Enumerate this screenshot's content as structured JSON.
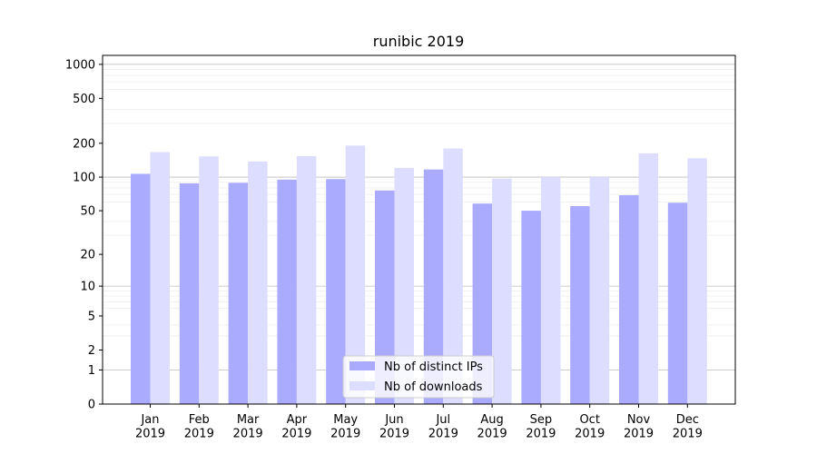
{
  "chart_data": {
    "type": "bar",
    "title": "runibic 2019",
    "xlabel": "",
    "ylabel": "",
    "yscale": "log1p",
    "ylim": [
      0,
      1200
    ],
    "yticks": [
      0,
      1,
      2,
      5,
      10,
      20,
      50,
      100,
      200,
      500,
      1000
    ],
    "ytick_labels": [
      "0",
      "1",
      "2",
      "5",
      "10",
      "20",
      "50",
      "100",
      "200",
      "500",
      "1000"
    ],
    "grid": "horizontal",
    "legend_position": "bottom-center",
    "categories": [
      "Jan 2019",
      "Feb 2019",
      "Mar 2019",
      "Apr 2019",
      "May 2019",
      "Jun 2019",
      "Jul 2019",
      "Aug 2019",
      "Sep 2019",
      "Oct 2019",
      "Nov 2019",
      "Dec 2019"
    ],
    "category_labels": [
      [
        "Jan",
        "2019"
      ],
      [
        "Feb",
        "2019"
      ],
      [
        "Mar",
        "2019"
      ],
      [
        "Apr",
        "2019"
      ],
      [
        "May",
        "2019"
      ],
      [
        "Jun",
        "2019"
      ],
      [
        "Jul",
        "2019"
      ],
      [
        "Aug",
        "2019"
      ],
      [
        "Sep",
        "2019"
      ],
      [
        "Oct",
        "2019"
      ],
      [
        "Nov",
        "2019"
      ],
      [
        "Dec",
        "2019"
      ]
    ],
    "series": [
      {
        "name": "Nb of distinct IPs",
        "color": "#aaaaff",
        "values": [
          107,
          88,
          89,
          95,
          96,
          76,
          117,
          58,
          50,
          55,
          69,
          59
        ]
      },
      {
        "name": "Nb of downloads",
        "color": "#ddddff",
        "values": [
          167,
          153,
          138,
          154,
          191,
          121,
          180,
          97,
          100,
          100,
          163,
          147
        ]
      }
    ]
  }
}
